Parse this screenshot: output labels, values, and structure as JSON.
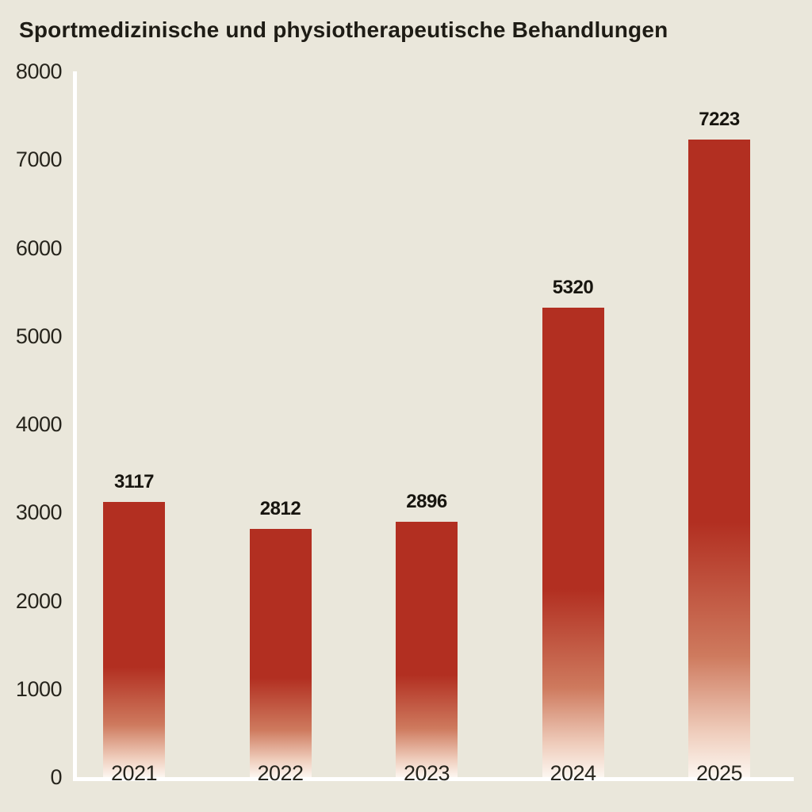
{
  "title": "Sportmedizinische und physiotherapeutische Behandlungen",
  "chart_data": {
    "type": "bar",
    "title": "Sportmedizinische und physiotherapeutische Behandlungen",
    "categories": [
      "2021",
      "2022",
      "2023",
      "2024",
      "2025"
    ],
    "values": [
      3117,
      2812,
      2896,
      5320,
      7223
    ],
    "value_labels": [
      "3117",
      "2812",
      "2896",
      "5320",
      "7223"
    ],
    "xlabel": "",
    "ylabel": "",
    "ylim": [
      0,
      8000
    ],
    "yticks": [
      0,
      1000,
      2000,
      3000,
      4000,
      5000,
      6000,
      7000,
      8000
    ],
    "grid": false,
    "legend": false,
    "colors": {
      "background": "#EAE7DB",
      "bar_top": "#B22F21",
      "bar_fade_mid": "#CE7A5E",
      "bar_fade_low": "#EFCDBC",
      "bar_fade_bottom": "#FCF6F0",
      "axis_line": "#FFFFFF",
      "tick_text": "#27251D",
      "value_text": "#17150F",
      "title_text": "#1E1C15"
    }
  }
}
